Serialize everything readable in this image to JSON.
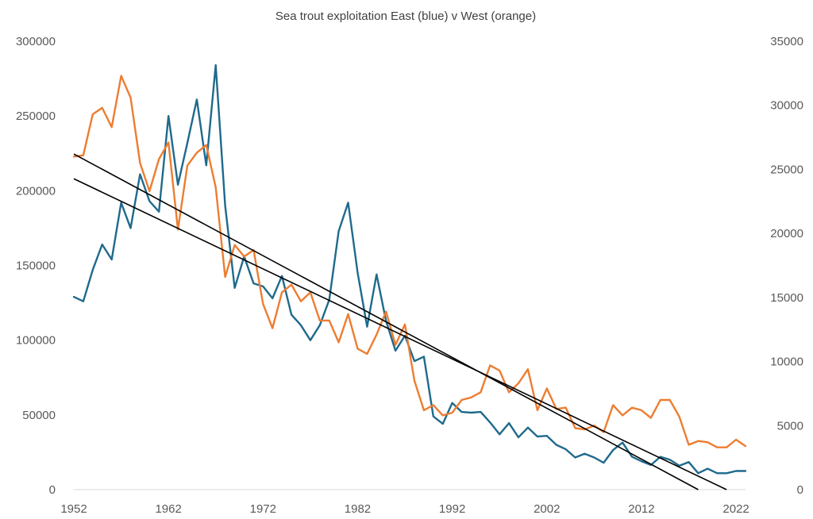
{
  "chart_data": {
    "type": "line",
    "title": "Sea trout exploitation East (blue) v West (orange)",
    "xlabel": "",
    "ylabel_left": "",
    "ylabel_right": "",
    "x_range": [
      1952,
      2023
    ],
    "x_ticks": [
      1952,
      1962,
      1972,
      1982,
      1992,
      2002,
      2012,
      2022
    ],
    "y_left_range": [
      0,
      300000
    ],
    "y_left_ticks": [
      "0",
      "50000",
      "100000",
      "150000",
      "200000",
      "250000",
      "300000"
    ],
    "y_right_range": [
      0,
      35000
    ],
    "y_right_ticks": [
      "0",
      "5000",
      "10000",
      "15000",
      "20000",
      "25000",
      "30000",
      "35000"
    ],
    "grid": false,
    "legend": "none",
    "series": [
      {
        "name": "East",
        "axis": "left",
        "color": "#1f6a8c",
        "x": [
          1952,
          1953,
          1954,
          1955,
          1956,
          1957,
          1958,
          1959,
          1960,
          1961,
          1962,
          1963,
          1964,
          1965,
          1966,
          1967,
          1968,
          1969,
          1970,
          1971,
          1972,
          1973,
          1974,
          1975,
          1976,
          1977,
          1978,
          1979,
          1980,
          1981,
          1982,
          1983,
          1984,
          1985,
          1986,
          1987,
          1988,
          1989,
          1990,
          1991,
          1992,
          1993,
          1994,
          1995,
          1996,
          1997,
          1998,
          1999,
          2000,
          2001,
          2002,
          2003,
          2004,
          2005,
          2006,
          2007,
          2008,
          2009,
          2010,
          2011,
          2012,
          2013,
          2014,
          2015,
          2016,
          2017,
          2018,
          2019,
          2020,
          2021,
          2022,
          2023
        ],
        "values": [
          129000,
          126000,
          147000,
          164000,
          154000,
          192000,
          175000,
          211000,
          193000,
          186000,
          250000,
          204000,
          232000,
          261000,
          217000,
          284000,
          190000,
          135000,
          156000,
          138000,
          136000,
          128000,
          143000,
          117000,
          110000,
          100000,
          110000,
          127000,
          173000,
          192000,
          145000,
          109000,
          144000,
          113000,
          93000,
          103000,
          86000,
          89000,
          49000,
          44000,
          58000,
          52000,
          51500,
          52000,
          45000,
          37000,
          44500,
          35000,
          41500,
          35500,
          36000,
          30000,
          27000,
          21500,
          24000,
          21500,
          18000,
          26500,
          31500,
          22000,
          19000,
          16500,
          22000,
          20000,
          16000,
          18500,
          11000,
          14000,
          11000,
          11000,
          12500,
          12500
        ]
      },
      {
        "name": "West",
        "axis": "right",
        "color": "#ed7d31",
        "x": [
          1952,
          1953,
          1954,
          1955,
          1956,
          1957,
          1958,
          1959,
          1960,
          1961,
          1962,
          1963,
          1964,
          1965,
          1966,
          1967,
          1968,
          1969,
          1970,
          1971,
          1972,
          1973,
          1974,
          1975,
          1976,
          1977,
          1978,
          1979,
          1980,
          1981,
          1982,
          1983,
          1984,
          1985,
          1986,
          1987,
          1988,
          1989,
          1990,
          1991,
          1992,
          1993,
          1994,
          1995,
          1996,
          1997,
          1998,
          1999,
          2000,
          2001,
          2002,
          2003,
          2004,
          2005,
          2006,
          2007,
          2008,
          2009,
          2010,
          2011,
          2012,
          2013,
          2014,
          2015,
          2016,
          2017,
          2018,
          2019,
          2020,
          2021,
          2022,
          2023
        ],
        "values": [
          26000,
          26100,
          29300,
          29800,
          28300,
          32300,
          30600,
          25500,
          23300,
          25800,
          27100,
          20300,
          25300,
          26300,
          26900,
          23600,
          16600,
          19100,
          18200,
          18700,
          14500,
          12600,
          15400,
          16000,
          14700,
          15400,
          13200,
          13200,
          11500,
          13700,
          11000,
          10600,
          12100,
          13900,
          11300,
          12900,
          8500,
          6200,
          6600,
          5800,
          6000,
          7000,
          7200,
          7600,
          9700,
          9300,
          7600,
          8300,
          9400,
          6200,
          7900,
          6300,
          6400,
          4800,
          4700,
          5000,
          4500,
          6600,
          5800,
          6400,
          6200,
          5600,
          7000,
          7000,
          5700,
          3500,
          3800,
          3700,
          3300,
          3300,
          3900,
          3400
        ]
      }
    ],
    "trendlines": [
      {
        "name": "East trend",
        "axis": "left",
        "color": "#000000",
        "x": [
          1952,
          2021
        ],
        "values": [
          208000,
          0
        ]
      },
      {
        "name": "West trend",
        "axis": "right",
        "color": "#000000",
        "x": [
          1952,
          2018
        ],
        "values": [
          26200,
          0
        ]
      }
    ]
  }
}
